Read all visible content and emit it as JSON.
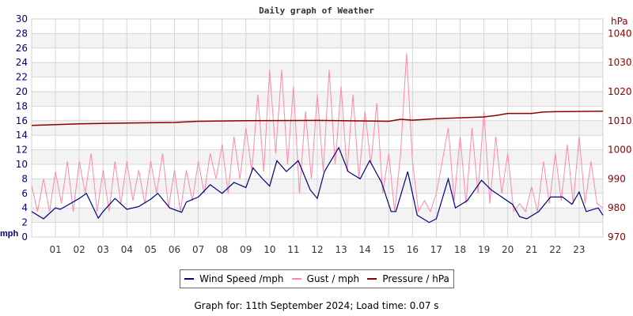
{
  "chart_data": {
    "type": "line",
    "title": "Daily graph of Weather",
    "ylabel_left": "mph",
    "ylabel_right": "hPa",
    "ylim_left": [
      0,
      30
    ],
    "ylim_right": [
      970,
      1045
    ],
    "xlim": [
      0,
      24
    ],
    "left_ticks": [
      "0",
      "2",
      "4",
      "6",
      "8",
      "10",
      "12",
      "14",
      "16",
      "18",
      "20",
      "22",
      "24",
      "26",
      "28",
      "30"
    ],
    "right_ticks": [
      "970",
      "980",
      "990",
      "1000",
      "1010",
      "1020",
      "1030",
      "1040"
    ],
    "x_ticks": [
      "01",
      "02",
      "03",
      "04",
      "05",
      "06",
      "07",
      "08",
      "09",
      "10",
      "11",
      "12",
      "13",
      "14",
      "15",
      "16",
      "17",
      "18",
      "19",
      "20",
      "21",
      "22",
      "23"
    ],
    "grid": true,
    "legend_placement": "bottom",
    "series": [
      {
        "name": "Wind Speed /mph",
        "color": "#000080",
        "axis": "left",
        "x": [
          0,
          0.5,
          1,
          1.2,
          2,
          2.3,
          2.8,
          3,
          3.5,
          4,
          4.5,
          5,
          5.3,
          5.8,
          6.3,
          6.5,
          7,
          7.5,
          8,
          8.5,
          9,
          9.3,
          9.7,
          10,
          10.3,
          10.7,
          11.2,
          11.7,
          12,
          12.3,
          12.9,
          13.3,
          13.8,
          14.2,
          14.7,
          15.1,
          15.3,
          15.8,
          16.2,
          16.7,
          17,
          17.5,
          17.8,
          18.3,
          18.9,
          19.3,
          20.2,
          20.5,
          20.8,
          21.3,
          21.8,
          22.3,
          22.7,
          23,
          23.3,
          23.8,
          24
        ],
        "values": [
          3.5,
          2.5,
          4,
          3.8,
          5.3,
          6,
          2.6,
          3.5,
          5.3,
          3.8,
          4.2,
          5.2,
          6,
          4,
          3.4,
          4.8,
          5.5,
          7.2,
          6,
          7.5,
          6.8,
          9.5,
          8,
          7,
          10.5,
          9,
          10.5,
          6.5,
          5.3,
          9,
          12.3,
          9,
          8,
          10.5,
          7.5,
          3.5,
          3.5,
          9,
          3,
          2,
          2.5,
          8,
          4,
          5,
          7.8,
          6.5,
          4.5,
          2.8,
          2.5,
          3.5,
          5.5,
          5.5,
          4.5,
          6.2,
          3.5,
          4,
          3
        ]
      },
      {
        "name": "Gust / mph",
        "color": "#ff88aa",
        "axis": "left",
        "step_hours": 0.25,
        "values": [
          7,
          3.5,
          8,
          3.5,
          9,
          4.6,
          10.4,
          3.5,
          10.4,
          6,
          11.5,
          3.5,
          9.2,
          3.5,
          10.4,
          4.6,
          10.4,
          5,
          9.2,
          4.6,
          10.4,
          6,
          11.5,
          4,
          9.2,
          3.5,
          9.2,
          5,
          10.4,
          6,
          11.5,
          8,
          12.7,
          6,
          13.8,
          8,
          15,
          9,
          19.6,
          9,
          23,
          11.5,
          23,
          10,
          20.7,
          6,
          17.3,
          8,
          19.6,
          9,
          23,
          10,
          20.7,
          9,
          19.6,
          8,
          17.3,
          10,
          18.4,
          6,
          11.5,
          3.5,
          11.5,
          25.3,
          10.4,
          3.5,
          5,
          3.5,
          6,
          10.4,
          15,
          5,
          13.8,
          4.6,
          15,
          6,
          17.3,
          4.6,
          13.8,
          6,
          11.5,
          3.5,
          4.6,
          3.5,
          6.9,
          3.5,
          10.4,
          4.6,
          11.5,
          5,
          12.7,
          4.6,
          13.8,
          4.6,
          10.4,
          4.6,
          4
        ]
      },
      {
        "name": "Pressure / hPa",
        "color": "#8b0000",
        "axis": "right",
        "x": [
          0,
          2,
          4,
          6,
          7,
          9,
          12,
          15,
          15.5,
          16,
          17,
          18,
          19,
          19.5,
          20,
          21,
          21.5,
          22,
          24
        ],
        "values": [
          1008.4,
          1008.9,
          1009.2,
          1009.4,
          1009.8,
          1010.0,
          1010.1,
          1009.8,
          1010.5,
          1010.2,
          1010.7,
          1011.0,
          1011.3,
          1011.8,
          1012.5,
          1012.5,
          1013.0,
          1013.1,
          1013.3
        ]
      }
    ]
  },
  "footer": "Graph for: 11th September 2024; Load time: 0.07 s"
}
